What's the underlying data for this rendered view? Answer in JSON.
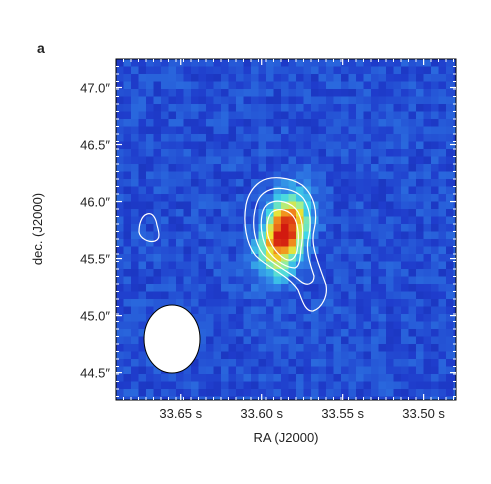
{
  "panel_label": "a",
  "chart_data": {
    "type": "heatmap",
    "title": "",
    "xlabel": "RA (J2000)",
    "ylabel": "dec. (J2000)",
    "x_ticks": [
      {
        "label": "33.65 s",
        "value": 33.65
      },
      {
        "label": "33.60 s",
        "value": 33.6
      },
      {
        "label": "33.55 s",
        "value": 33.55
      },
      {
        "label": "33.50 s",
        "value": 33.5
      }
    ],
    "y_ticks": [
      {
        "label": "44.5″",
        "value": 44.5
      },
      {
        "label": "45.0″",
        "value": 45.0
      },
      {
        "label": "45.5″",
        "value": 45.5
      },
      {
        "label": "46.0″",
        "value": 46.0
      },
      {
        "label": "46.5″",
        "value": 46.5
      },
      {
        "label": "47.0″",
        "value": 47.0
      }
    ],
    "xlim": [
      33.69,
      33.48
    ],
    "ylim": [
      44.26,
      47.25
    ],
    "x_direction": "reversed",
    "source_peak": {
      "x": 33.586,
      "y": 45.72
    },
    "colormap": [
      "#0a1f8c",
      "#1f3ccc",
      "#2f7fe6",
      "#3fd6e8",
      "#9af09a",
      "#f2e02a",
      "#f07a1a",
      "#d21a10"
    ],
    "contour_color": "#ffffff",
    "beam_color": "#ffffff",
    "grid": false
  }
}
